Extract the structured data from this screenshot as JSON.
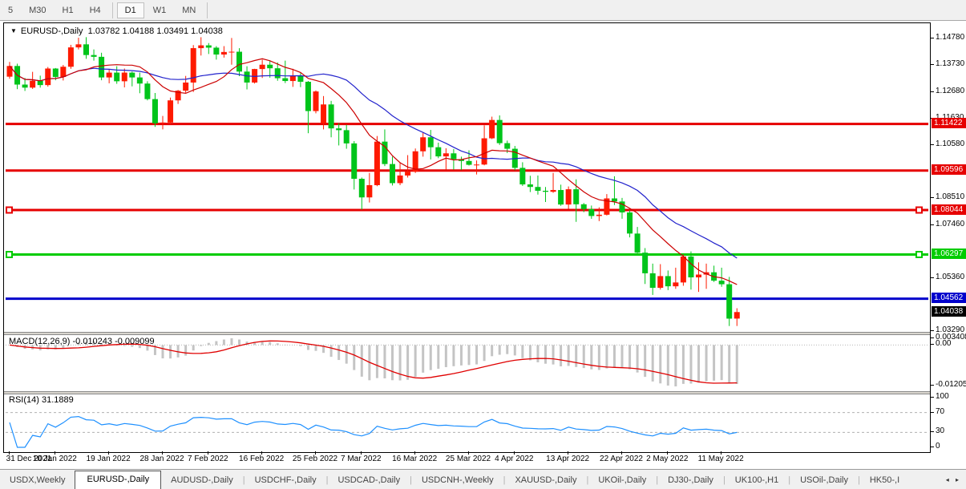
{
  "toolbar": {
    "timeframes": [
      "5",
      "M30",
      "H1",
      "H4",
      "D1",
      "W1",
      "MN"
    ],
    "selected": "D1"
  },
  "chart": {
    "symbol_label": "EURUSD-,Daily",
    "open": "1.03782",
    "high": "1.04188",
    "low": "1.03491",
    "close": "1.04038",
    "dropdown_icon": "▼"
  },
  "price_axis_ticks": [
    "1.14780",
    "1.13730",
    "1.12680",
    "1.11630",
    "1.10580",
    "1.08510",
    "1.07460",
    "1.05360",
    "1.03290"
  ],
  "levels": [
    {
      "label": "1.11422",
      "price": 1.11422,
      "color": "#e60000",
      "anchors": false
    },
    {
      "label": "1.09596",
      "price": 1.09596,
      "color": "#e60000",
      "anchors": false
    },
    {
      "label": "1.08044",
      "price": 1.08044,
      "color": "#e60000",
      "anchors": true
    },
    {
      "label": "1.06297",
      "price": 1.06297,
      "color": "#00cc00",
      "anchors": true
    },
    {
      "label": "1.04562",
      "price": 1.04562,
      "color": "#0000cc",
      "anchors": false
    }
  ],
  "current_price": {
    "label": "1.04038",
    "price": 1.04038,
    "color": "#000000"
  },
  "chart_data": {
    "type": "candlestick",
    "symbol": "EURUSD-",
    "timeframe": "Daily",
    "up_color": "#fe1a00",
    "down_color": "#00c41a",
    "ma_fast": {
      "period": 10,
      "color": "#cc0000"
    },
    "ma_slow": {
      "period": 21,
      "color": "#2222cc"
    },
    "x_axis_dates": [
      {
        "label": "31 Dec 2021",
        "i": 0
      },
      {
        "label": "10 Jan 2022",
        "i": 6
      },
      {
        "label": "19 Jan 2022",
        "i": 13
      },
      {
        "label": "28 Jan 2022",
        "i": 20
      },
      {
        "label": "7 Feb 2022",
        "i": 26
      },
      {
        "label": "16 Feb 2022",
        "i": 33
      },
      {
        "label": "25 Feb 2022",
        "i": 40
      },
      {
        "label": "7 Mar 2022",
        "i": 46
      },
      {
        "label": "16 Mar 2022",
        "i": 53
      },
      {
        "label": "25 Mar 2022",
        "i": 60
      },
      {
        "label": "4 Apr 2022",
        "i": 66
      },
      {
        "label": "13 Apr 2022",
        "i": 73
      },
      {
        "label": "22 Apr 2022",
        "i": 80
      },
      {
        "label": "2 May 2022",
        "i": 86
      },
      {
        "label": "11 May 2022",
        "i": 93
      }
    ],
    "candles": [
      [
        1.1328,
        1.1386,
        1.132,
        1.137
      ],
      [
        1.137,
        1.1379,
        1.1279,
        1.1297
      ],
      [
        1.1297,
        1.1323,
        1.1272,
        1.1285
      ],
      [
        1.1285,
        1.1347,
        1.128,
        1.1312
      ],
      [
        1.1312,
        1.1332,
        1.1285,
        1.1295
      ],
      [
        1.1295,
        1.1366,
        1.1289,
        1.136
      ],
      [
        1.136,
        1.1362,
        1.1314,
        1.1327
      ],
      [
        1.1327,
        1.1374,
        1.1313,
        1.1367
      ],
      [
        1.1367,
        1.1453,
        1.1359,
        1.1443
      ],
      [
        1.1443,
        1.1481,
        1.1435,
        1.1455
      ],
      [
        1.1455,
        1.1483,
        1.1398,
        1.1413
      ],
      [
        1.1413,
        1.1435,
        1.1391,
        1.1406
      ],
      [
        1.1406,
        1.1422,
        1.1314,
        1.1325
      ],
      [
        1.1325,
        1.1358,
        1.1302,
        1.1344
      ],
      [
        1.1344,
        1.1369,
        1.13,
        1.131
      ],
      [
        1.131,
        1.136,
        1.1286,
        1.1344
      ],
      [
        1.1344,
        1.1348,
        1.129,
        1.1325
      ],
      [
        1.1325,
        1.1344,
        1.1263,
        1.1301
      ],
      [
        1.1301,
        1.131,
        1.1235,
        1.124
      ],
      [
        1.124,
        1.1264,
        1.1131,
        1.1145
      ],
      [
        1.1145,
        1.1174,
        1.1121,
        1.1148
      ],
      [
        1.1148,
        1.1246,
        1.1141,
        1.1235
      ],
      [
        1.1235,
        1.1276,
        1.1221,
        1.1273
      ],
      [
        1.1273,
        1.1331,
        1.1265,
        1.1305
      ],
      [
        1.1305,
        1.1452,
        1.1268,
        1.144
      ],
      [
        1.144,
        1.1483,
        1.1411,
        1.1451
      ],
      [
        1.1451,
        1.146,
        1.1417,
        1.1442
      ],
      [
        1.1442,
        1.1448,
        1.1395,
        1.1415
      ],
      [
        1.1415,
        1.1448,
        1.1403,
        1.1425
      ],
      [
        1.1425,
        1.148,
        1.1375,
        1.1426
      ],
      [
        1.1426,
        1.144,
        1.133,
        1.1348
      ],
      [
        1.1348,
        1.1369,
        1.1278,
        1.1305
      ],
      [
        1.1305,
        1.1359,
        1.1301,
        1.1358
      ],
      [
        1.1358,
        1.1395,
        1.1323,
        1.1375
      ],
      [
        1.1375,
        1.1392,
        1.1324,
        1.1361
      ],
      [
        1.1361,
        1.1384,
        1.1312,
        1.1322
      ],
      [
        1.1322,
        1.1391,
        1.1303,
        1.1311
      ],
      [
        1.1311,
        1.1359,
        1.1288,
        1.133
      ],
      [
        1.133,
        1.1342,
        1.1287,
        1.1308
      ],
      [
        1.1308,
        1.1311,
        1.1106,
        1.1193
      ],
      [
        1.1193,
        1.1274,
        1.1184,
        1.127
      ],
      [
        1.1145,
        1.1252,
        1.1121,
        1.1219
      ],
      [
        1.1219,
        1.1233,
        1.109,
        1.1125
      ],
      [
        1.1125,
        1.1145,
        1.1058,
        1.1118
      ],
      [
        1.1118,
        1.1139,
        1.1045,
        1.1066
      ],
      [
        1.1066,
        1.1075,
        1.0885,
        1.0927
      ],
      [
        1.0927,
        1.0932,
        1.0806,
        1.0854
      ],
      [
        1.0854,
        1.095,
        1.0834,
        1.0902
      ],
      [
        1.0902,
        1.1095,
        1.0898,
        1.1073
      ],
      [
        1.1073,
        1.1121,
        1.0977,
        1.0985
      ],
      [
        1.0985,
        1.1014,
        1.0901,
        1.091
      ],
      [
        1.091,
        1.0992,
        1.0902,
        1.094
      ],
      [
        1.094,
        1.102,
        1.0932,
        1.0955
      ],
      [
        1.0955,
        1.1046,
        1.095,
        1.1035
      ],
      [
        1.1035,
        1.1109,
        1.1014,
        1.109
      ],
      [
        1.109,
        1.1119,
        1.1003,
        1.1051
      ],
      [
        1.1051,
        1.1069,
        1.1008,
        1.1015
      ],
      [
        1.1015,
        1.1047,
        1.0963,
        1.1027
      ],
      [
        1.1027,
        1.1044,
        1.0963,
        1.1004
      ],
      [
        1.1004,
        1.1014,
        1.0961,
        1.0997
      ],
      [
        1.0997,
        1.1039,
        1.0979,
        1.0982
      ],
      [
        1.0982,
        1.0999,
        1.0944,
        1.0983
      ],
      [
        1.0983,
        1.1137,
        1.098,
        1.1086
      ],
      [
        1.1086,
        1.1171,
        1.1083,
        1.1158
      ],
      [
        1.1158,
        1.1176,
        1.106,
        1.1067
      ],
      [
        1.1067,
        1.1077,
        1.1028,
        1.1045
      ],
      [
        1.1045,
        1.1056,
        1.096,
        1.097
      ],
      [
        1.097,
        1.0992,
        1.0899,
        1.0905
      ],
      [
        1.0905,
        1.0939,
        1.0875,
        1.0895
      ],
      [
        1.0895,
        1.094,
        1.0865,
        1.088
      ],
      [
        1.088,
        1.0895,
        1.0836,
        1.0876
      ],
      [
        1.0876,
        1.095,
        1.0872,
        1.0883
      ],
      [
        1.0883,
        1.0904,
        1.0821,
        1.0826
      ],
      [
        1.0826,
        1.0897,
        1.0809,
        1.0886
      ],
      [
        1.0886,
        1.0925,
        1.0758,
        1.0827
      ],
      [
        1.0827,
        1.0832,
        1.0796,
        1.0808
      ],
      [
        1.0808,
        1.0822,
        1.077,
        1.0781
      ],
      [
        1.0781,
        1.0815,
        1.0761,
        1.0786
      ],
      [
        1.0786,
        1.0867,
        1.0783,
        1.085
      ],
      [
        1.085,
        1.0937,
        1.0824,
        1.0838
      ],
      [
        1.0838,
        1.0852,
        1.077,
        1.0795
      ],
      [
        1.0795,
        1.0804,
        1.0697,
        1.0712
      ],
      [
        1.0712,
        1.0738,
        1.0635,
        1.0637
      ],
      [
        1.0637,
        1.0655,
        1.0514,
        1.0556
      ],
      [
        1.0556,
        1.0594,
        1.0471,
        1.0499
      ],
      [
        1.0499,
        1.0592,
        1.0492,
        1.0545
      ],
      [
        1.0545,
        1.0567,
        1.049,
        1.0505
      ],
      [
        1.0505,
        1.0578,
        1.0495,
        1.052
      ],
      [
        1.052,
        1.063,
        1.0507,
        1.0622
      ],
      [
        1.0622,
        1.0642,
        1.0492,
        1.054
      ],
      [
        1.054,
        1.0599,
        1.0483,
        1.0551
      ],
      [
        1.0551,
        1.0594,
        1.0495,
        1.056
      ],
      [
        1.056,
        1.0586,
        1.0522,
        1.0527
      ],
      [
        1.0527,
        1.0578,
        1.0503,
        1.0513
      ],
      [
        1.0513,
        1.0542,
        1.0349,
        1.0378
      ],
      [
        1.03782,
        1.04188,
        1.03491,
        1.04038
      ]
    ]
  },
  "macd": {
    "label": "MACD(12,26,9)",
    "main_value": "-0.010243",
    "signal_value": "-0.009099",
    "fast": 12,
    "slow": 26,
    "signal": 9,
    "axis_labels": {
      "max": "0.003408",
      "zero": "0.00",
      "min": "-0.01205"
    },
    "hist_color": "#c4c4c4",
    "signal_color": "#e00000"
  },
  "rsi": {
    "label": "RSI(14)",
    "value": "31.1889",
    "period": 14,
    "axis_labels": [
      "100",
      "70",
      "30",
      "0"
    ],
    "guide_levels": [
      70,
      30
    ],
    "color": "#1e90ff"
  },
  "tabs": {
    "items": [
      "USDX,Weekly",
      "EURUSD-,Daily",
      "AUDUSD-,Daily",
      "USDCHF-,Daily",
      "USDCAD-,Daily",
      "USDCNH-,Weekly",
      "XAUUSD-,Daily",
      "UKOil-,Daily",
      "DJ30-,Daily",
      "UK100-,H1",
      "USOil-,Daily",
      "HK50-,I"
    ],
    "selected_index": 1,
    "scroll_left_icon": "◂",
    "scroll_right_icon": "▸"
  }
}
